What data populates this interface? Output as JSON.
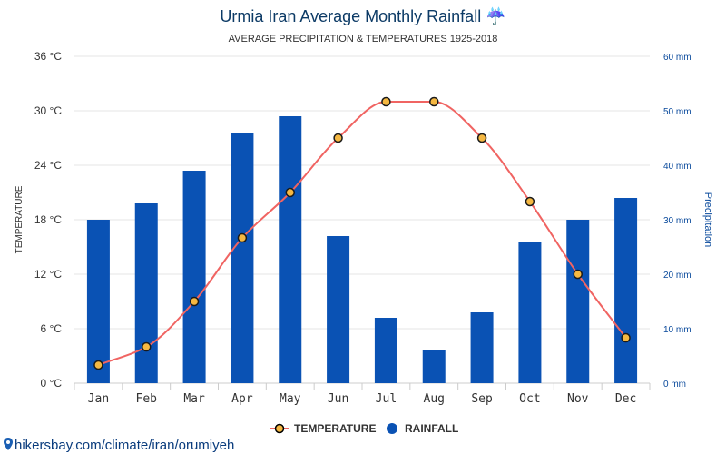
{
  "page": {
    "title": "Urmia Iran Average Monthly Rainfall ☔",
    "subtitle": "AVERAGE PRECIPITATION & TEMPERATURES 1925-2018",
    "source": "hikersbay.com/climate/iran/orumiyeh"
  },
  "chart_data": {
    "type": "bar",
    "categories": [
      "Jan",
      "Feb",
      "Mar",
      "Apr",
      "May",
      "Jun",
      "Jul",
      "Aug",
      "Sep",
      "Oct",
      "Nov",
      "Dec"
    ],
    "series": [
      {
        "name": "TEMPERATURE",
        "type": "line",
        "axis": "left",
        "color": "#f06462",
        "marker_fill": "#f5b842",
        "values": [
          2,
          4,
          9,
          16,
          21,
          27,
          31,
          31,
          27,
          20,
          12,
          5
        ]
      },
      {
        "name": "RAINFALL",
        "type": "bar",
        "axis": "right",
        "color": "#0a52b4",
        "values": [
          30,
          33,
          39,
          46,
          49,
          27,
          12,
          6,
          13,
          26,
          30,
          34
        ]
      }
    ],
    "y_left": {
      "label": "TEMPERATURE",
      "unit": "°C",
      "ylim": [
        0,
        36
      ],
      "ticks": [
        "0 °C",
        "6 °C",
        "12 °C",
        "18 °C",
        "24 °C",
        "30 °C",
        "36 °C"
      ]
    },
    "y_right": {
      "label": "Precipitation",
      "unit": "mm",
      "ylim": [
        0,
        60
      ],
      "ticks": [
        "0 mm",
        "10 mm",
        "20 mm",
        "30 mm",
        "40 mm",
        "50 mm",
        "60 mm"
      ]
    },
    "grid": true,
    "legend_position": "bottom-center"
  }
}
